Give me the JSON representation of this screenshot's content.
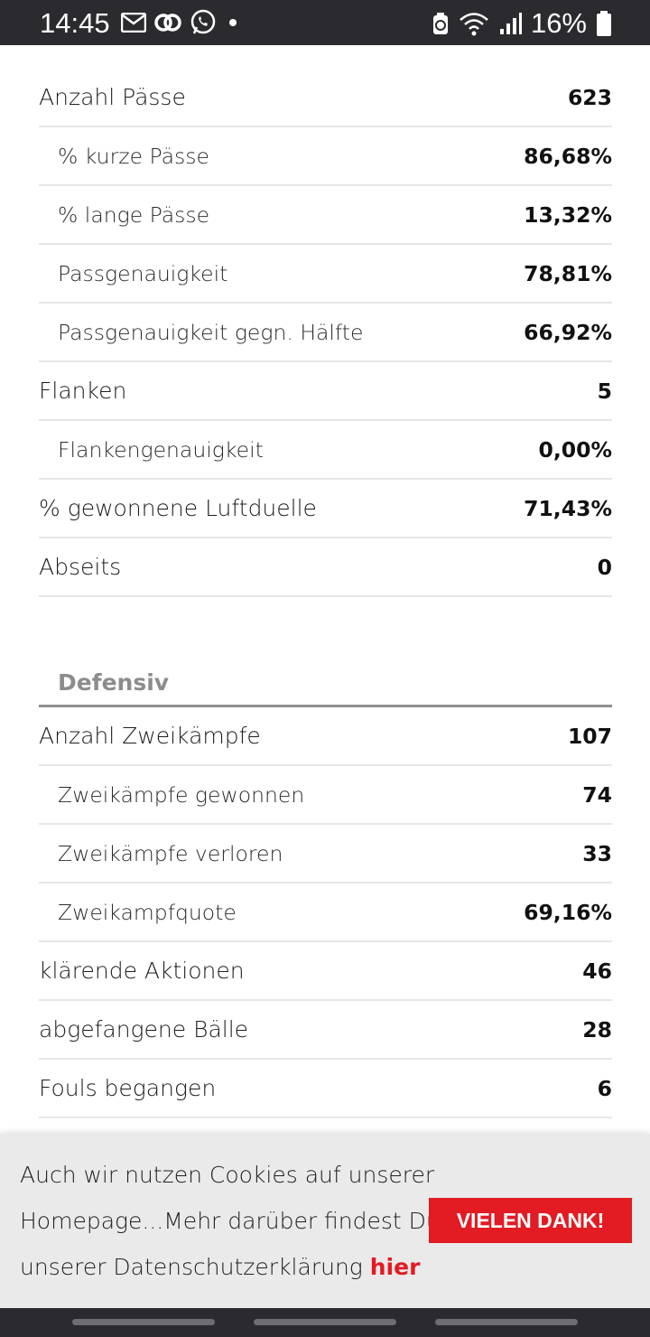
{
  "status_bar": {
    "time": "14:45",
    "battery": "16%",
    "icons_left": [
      "mail-icon",
      "sync-icon",
      "whatsapp-icon",
      "dot-icon"
    ],
    "icons_right": [
      "recycle-battery-icon",
      "wifi-icon",
      "signal-icon",
      "battery-icon"
    ]
  },
  "offensive_rows": [
    {
      "label": "Anzahl Pässe",
      "value": "623",
      "sub": false
    },
    {
      "label": "% kurze Pässe",
      "value": "86,68%",
      "sub": true
    },
    {
      "label": "% lange Pässe",
      "value": "13,32%",
      "sub": true
    },
    {
      "label": "Passgenauigkeit",
      "value": "78,81%",
      "sub": true
    },
    {
      "label": "Passgenauigkeit gegn. Hälfte",
      "value": "66,92%",
      "sub": true
    },
    {
      "label": "Flanken",
      "value": "5",
      "sub": false
    },
    {
      "label": "Flankengenauigkeit",
      "value": "0,00%",
      "sub": true
    },
    {
      "label": "% gewonnene Luftduelle",
      "value": "71,43%",
      "sub": false
    },
    {
      "label": "Abseits",
      "value": "0",
      "sub": false
    }
  ],
  "defensive": {
    "title": "Defensiv",
    "rows": [
      {
        "label": "Anzahl Zweikämpfe",
        "value": "107",
        "sub": false
      },
      {
        "label": "Zweikämpfe gewonnen",
        "value": "74",
        "sub": true
      },
      {
        "label": "Zweikämpfe verloren",
        "value": "33",
        "sub": true
      },
      {
        "label": "Zweikampfquote",
        "value": "69,16%",
        "sub": true
      },
      {
        "label": "klärende Aktionen",
        "value": "46",
        "sub": false
      },
      {
        "label": "abgefangene Bälle",
        "value": "28",
        "sub": false
      },
      {
        "label": "Fouls begangen",
        "value": "6",
        "sub": false
      }
    ]
  },
  "cookie_banner": {
    "text_line1": "Auch wir nutzen Cookies auf unserer",
    "text_line2": "Homepage...Mehr darüber findest Du in",
    "text_line3": "unserer Datenschutzerklärung",
    "link_label": "hier",
    "button_label": "VIELEN DANK!",
    "accent_color": "#e31b23"
  }
}
